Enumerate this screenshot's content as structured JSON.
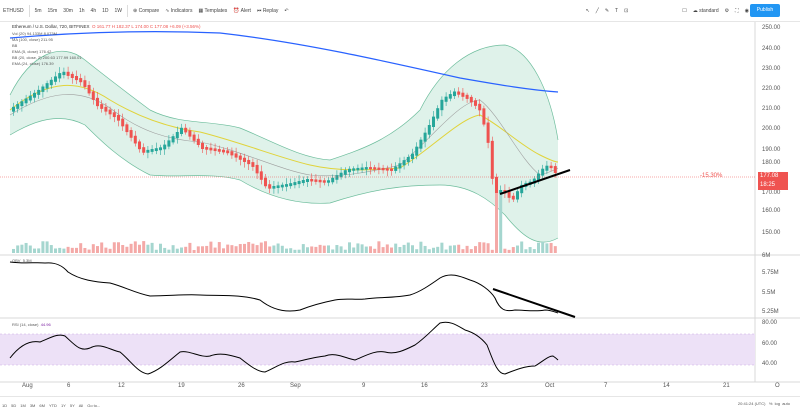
{
  "toolbar": {
    "symbol": "ETHUSD",
    "intervals": [
      "5m",
      "15m",
      "30m",
      "1h",
      "4h",
      "1D",
      "1W"
    ],
    "active_interval": "1D",
    "compare": "Compare",
    "indicators": "Indicators",
    "templates": "Templates",
    "alert": "Alert",
    "replay": "Replay",
    "mode": "standard",
    "publish": "Publish"
  },
  "legends": {
    "main": "Ethereum / U.S. Dollar, 720, BITFINEX",
    "ohlc": "O 161.77  H 182.37  L 174.00  C 177.08  +6.09 (+3.56%)",
    "vol": "Vol (20)  94.133M  8.073M",
    "ma1": "MA (100, close) 211.95",
    "bb_short": "BB",
    "ema1": "EMA (5, close) 176.42",
    "bb": "BB (20, close, 2)  200.63  177.99  160.01",
    "ema2": "EMA (24, close) 176.39",
    "obv": "OBV",
    "obv_value": "5.3M",
    "rsi": "RSI (14, close)",
    "rsi_value": "44.96"
  },
  "price": {
    "pct_change": "-15.30%",
    "last": "177.08",
    "countdown": "18:25",
    "ticks": [
      "250.00",
      "240.00",
      "230.00",
      "220.00",
      "210.00",
      "200.00",
      "190.00",
      "180.00",
      "170.00",
      "160.00",
      "150.00"
    ]
  },
  "obv_axis": [
    "6M",
    "5.75M",
    "5.5M",
    "5.25M"
  ],
  "rsi_axis": [
    "80.00",
    "60.00",
    "40.00"
  ],
  "x_axis": [
    "Aug",
    "6",
    "12",
    "19",
    "26",
    "Sep",
    "9",
    "16",
    "23",
    "Oct",
    "7",
    "14",
    "21",
    "O"
  ],
  "bottom": {
    "ranges": [
      "1D",
      "5D",
      "1M",
      "3M",
      "6M",
      "YTD",
      "1Y",
      "5Y",
      "All"
    ],
    "goto": "Go to...",
    "time": "20:41:24 (UTC)",
    "pct": "%",
    "log": "log",
    "auto": "auto"
  },
  "colors": {
    "up": "#26a69a",
    "down": "#ef5350",
    "bb_fill": "#dff2ea",
    "ma_blue": "#2962ff",
    "ema_yellow": "#e0d33a",
    "rsi_band": "#ede1f7"
  },
  "chart_data": {
    "type": "line",
    "symbol": "ETHUSD",
    "x": [
      "Aug",
      "6",
      "12",
      "19",
      "26",
      "Sep",
      "9",
      "16",
      "23",
      "Oct",
      "7",
      "14",
      "21"
    ],
    "ylim": [
      145,
      255
    ],
    "price_close": [
      222,
      228,
      204,
      176,
      198,
      186,
      168,
      175,
      186,
      180,
      214,
      208,
      166,
      172,
      177
    ],
    "ma_long": [
      246,
      248,
      247,
      244,
      241,
      237,
      233,
      229,
      225,
      222,
      219,
      216
    ],
    "obv_ylim": [
      5.2,
      6.0
    ],
    "rsi_ylim": [
      20,
      85
    ],
    "rsi": [
      55,
      70,
      30,
      50,
      45,
      30,
      50,
      55,
      78,
      28,
      40,
      48,
      45
    ]
  }
}
